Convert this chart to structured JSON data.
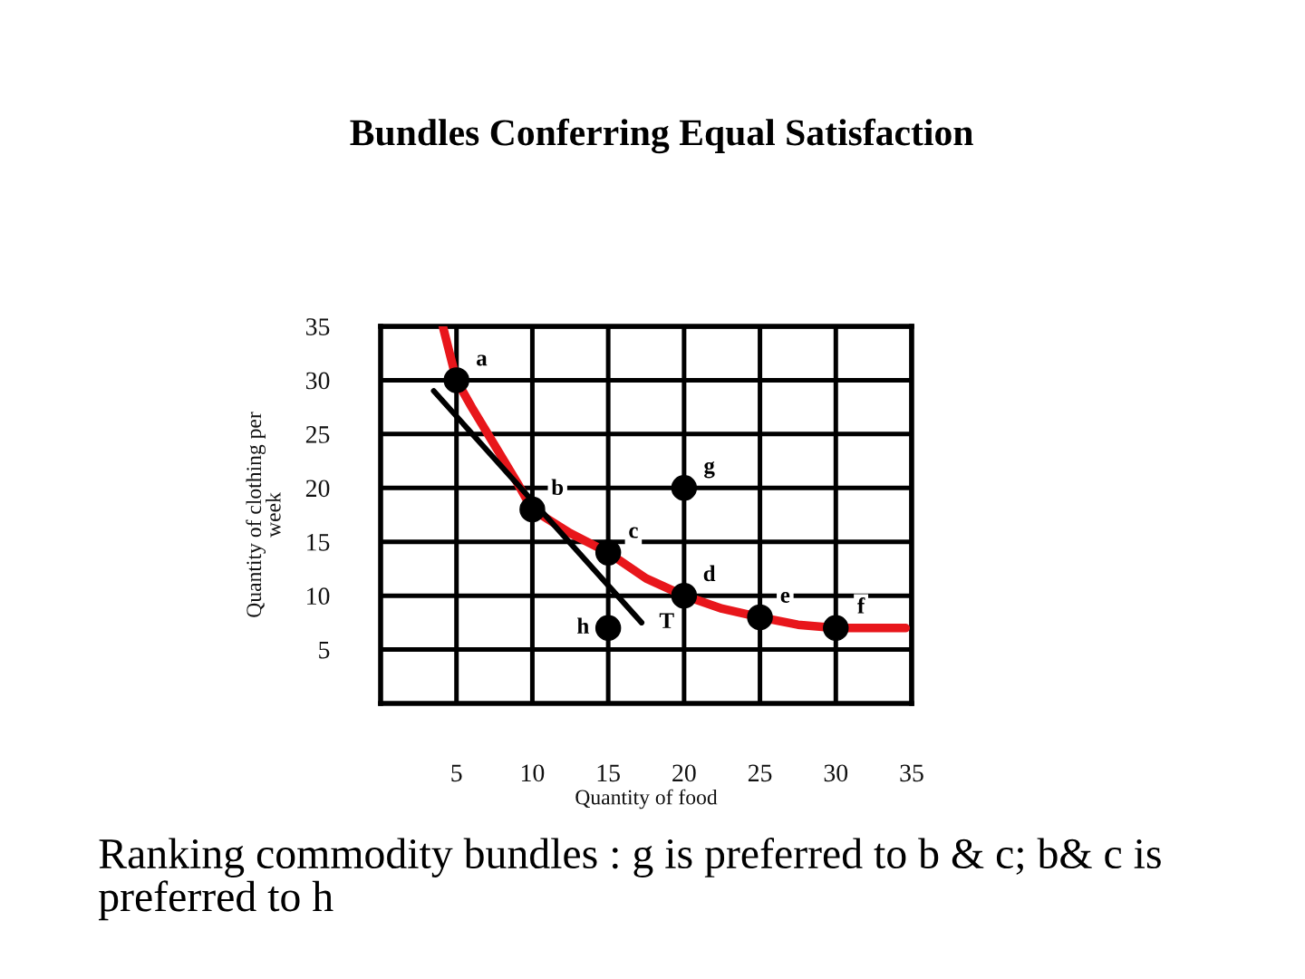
{
  "chart_data": {
    "type": "scatter",
    "title": "Bundles Conferring Equal Satisfaction",
    "xlabel": "Quantity of food",
    "ylabel": "Quantity of clothing per week",
    "xlim": [
      0,
      35
    ],
    "ylim": [
      0,
      35
    ],
    "xticks": [
      5,
      10,
      15,
      20,
      25,
      30,
      35
    ],
    "yticks": [
      5,
      10,
      15,
      20,
      25,
      30,
      35
    ],
    "grid": true,
    "series": [
      {
        "type": "line",
        "color": "#e8161b",
        "x": [
          4.1,
          5,
          6,
          7.5,
          9,
          10,
          12.5,
          15,
          17.5,
          20,
          22.5,
          25,
          27.5,
          30,
          34.6
        ],
        "values": [
          35,
          30,
          27.5,
          24,
          20.5,
          18,
          15.8,
          14,
          11.6,
          10,
          8.8,
          8,
          7.3,
          7,
          7
        ]
      },
      {
        "type": "line",
        "color": "#000000",
        "x": [
          3.5,
          17.2
        ],
        "values": [
          29,
          7.5
        ]
      },
      {
        "type": "scatter",
        "color": "#000000",
        "marker": "circle",
        "x": [
          5,
          10,
          15,
          20,
          25,
          30,
          20,
          15
        ],
        "values": [
          30,
          18,
          14,
          10,
          8,
          7,
          20,
          7
        ]
      }
    ],
    "annotations": [
      {
        "text": "a",
        "x": 5,
        "y": 30
      },
      {
        "text": "b",
        "x": 10,
        "y": 18
      },
      {
        "text": "c",
        "x": 15,
        "y": 14
      },
      {
        "text": "d",
        "x": 20,
        "y": 10
      },
      {
        "text": "e",
        "x": 25,
        "y": 8
      },
      {
        "text": "f",
        "x": 30,
        "y": 7
      },
      {
        "text": "g",
        "x": 20,
        "y": 20
      },
      {
        "text": "h",
        "x": 15,
        "y": 7
      },
      {
        "text": "T",
        "x": 17.2,
        "y": 7.5
      },
      "Ranking commodity bundles : g is preferred to b & c; b& c is preferred to h"
    ]
  }
}
